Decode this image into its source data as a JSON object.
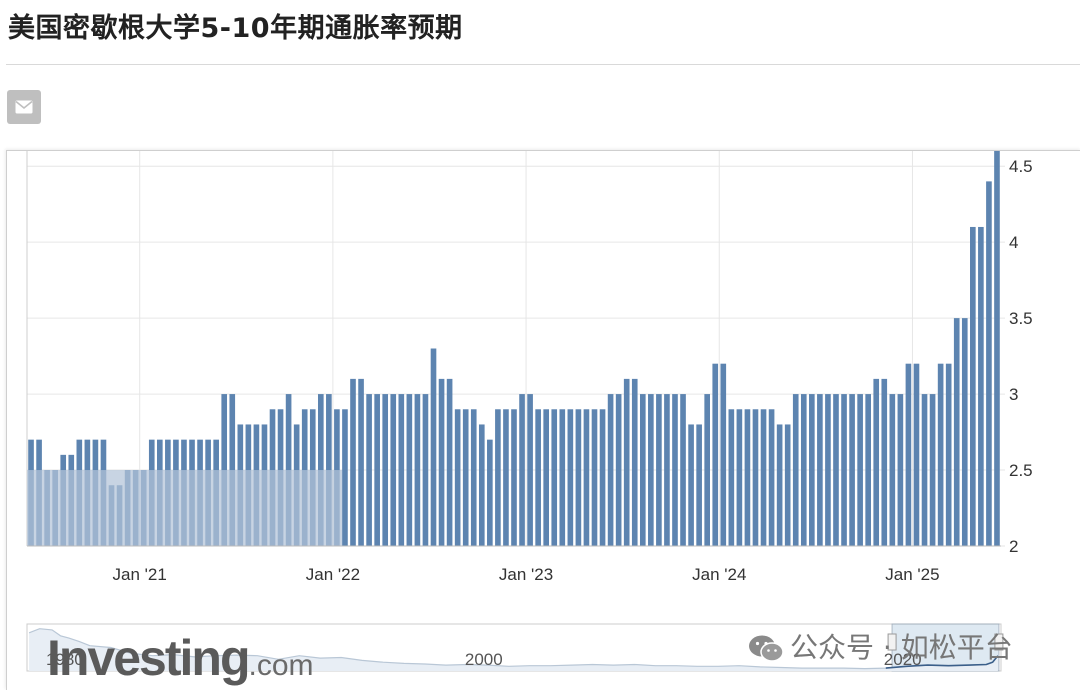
{
  "page": {
    "title": "美国密歇根大学5-10年期通胀率预期"
  },
  "toolbar": {
    "mail_icon": "envelope-icon"
  },
  "watermark": {
    "logo_main": "Investing",
    "logo_suffix": ".com",
    "wechat": "公众号 · 如松平台",
    "wechat_icon": "wechat-icon"
  },
  "colors": {
    "bar": "#5d84b0",
    "bar_highlight": "#b3c4d8",
    "grid": "#e6e6e6",
    "axis_text": "#333333",
    "navigator_line": "#5d84b0",
    "navigator_mask": "#d7e4f0"
  },
  "chart_data": {
    "type": "bar",
    "title": "",
    "xlabel": "",
    "ylabel": "",
    "ylim": [
      2,
      4.6
    ],
    "y_ticks": [
      "2",
      "2.5",
      "3",
      "3.5",
      "4",
      "4.5"
    ],
    "x_ticks": [
      "Jan '21",
      "Jan '22",
      "Jan '23",
      "Jan '24",
      "Jan '25"
    ],
    "x_tick_indices": [
      14,
      38,
      62,
      86,
      110
    ],
    "grid": true,
    "values": [
      2.7,
      2.7,
      2.5,
      2.5,
      2.6,
      2.6,
      2.7,
      2.7,
      2.7,
      2.7,
      2.4,
      2.4,
      2.5,
      2.5,
      2.5,
      2.7,
      2.7,
      2.7,
      2.7,
      2.7,
      2.7,
      2.7,
      2.7,
      2.7,
      3.0,
      3.0,
      2.8,
      2.8,
      2.8,
      2.8,
      2.9,
      2.9,
      3.0,
      2.8,
      2.9,
      2.9,
      3.0,
      3.0,
      2.9,
      2.9,
      3.1,
      3.1,
      3.0,
      3.0,
      3.0,
      3.0,
      3.0,
      3.0,
      3.0,
      3.0,
      3.3,
      3.1,
      3.1,
      2.9,
      2.9,
      2.9,
      2.8,
      2.7,
      2.9,
      2.9,
      2.9,
      3.0,
      3.0,
      2.9,
      2.9,
      2.9,
      2.9,
      2.9,
      2.9,
      2.9,
      2.9,
      2.9,
      3.0,
      3.0,
      3.1,
      3.1,
      3.0,
      3.0,
      3.0,
      3.0,
      3.0,
      3.0,
      2.8,
      2.8,
      3.0,
      3.2,
      3.2,
      2.9,
      2.9,
      2.9,
      2.9,
      2.9,
      2.9,
      2.8,
      2.8,
      3.0,
      3.0,
      3.0,
      3.0,
      3.0,
      3.0,
      3.0,
      3.0,
      3.0,
      3.0,
      3.1,
      3.1,
      3.0,
      3.0,
      3.2,
      3.2,
      3.0,
      3.0,
      3.2,
      3.2,
      3.5,
      3.5,
      4.1,
      4.1,
      4.4,
      4.6
    ],
    "navigator": {
      "type": "line",
      "x_labels": [
        "1980",
        "2000",
        "2020"
      ],
      "x_label_years": [
        1980,
        2000,
        2020
      ],
      "x_range": [
        1979,
        2025.5
      ],
      "selected_range": [
        2020.3,
        2025.4
      ],
      "y_range": [
        2,
        10
      ],
      "series": [
        [
          1979.1,
          8.5
        ],
        [
          1979.6,
          9.2
        ],
        [
          1980.2,
          9.0
        ],
        [
          1980.6,
          8.0
        ],
        [
          1981.0,
          7.6
        ],
        [
          1981.5,
          7.0
        ],
        [
          1982.0,
          6.3
        ],
        [
          1983.0,
          6.0
        ],
        [
          1984.0,
          5.0
        ],
        [
          1985.0,
          4.6
        ],
        [
          1986.0,
          4.8
        ],
        [
          1987.0,
          4.4
        ],
        [
          1988.0,
          4.6
        ],
        [
          1989.0,
          4.7
        ],
        [
          1990.0,
          4.6
        ],
        [
          1991.0,
          4.0
        ],
        [
          1992.0,
          4.6
        ],
        [
          1993.0,
          4.2
        ],
        [
          1994.0,
          4.3
        ],
        [
          1995.0,
          3.8
        ],
        [
          1996.0,
          3.5
        ],
        [
          1997.0,
          3.3
        ],
        [
          1998.0,
          3.2
        ],
        [
          1999.0,
          3.0
        ],
        [
          2000.0,
          3.1
        ],
        [
          2001.0,
          3.0
        ],
        [
          2002.0,
          2.8
        ],
        [
          2003.0,
          2.9
        ],
        [
          2004.0,
          2.9
        ],
        [
          2005.0,
          3.0
        ],
        [
          2006.0,
          3.1
        ],
        [
          2007.0,
          3.0
        ],
        [
          2008.0,
          3.1
        ],
        [
          2009.0,
          2.9
        ],
        [
          2010.0,
          2.9
        ],
        [
          2011.0,
          2.8
        ],
        [
          2012.0,
          2.8
        ],
        [
          2013.0,
          2.9
        ],
        [
          2014.0,
          2.7
        ],
        [
          2015.0,
          2.6
        ],
        [
          2016.0,
          2.5
        ],
        [
          2017.0,
          2.5
        ],
        [
          2018.0,
          2.5
        ],
        [
          2019.0,
          2.4
        ],
        [
          2020.0,
          2.5
        ],
        [
          2021.0,
          2.8
        ],
        [
          2022.0,
          3.0
        ],
        [
          2023.0,
          2.9
        ],
        [
          2024.0,
          3.0
        ],
        [
          2024.8,
          3.1
        ],
        [
          2025.1,
          3.5
        ],
        [
          2025.35,
          4.6
        ]
      ]
    }
  }
}
